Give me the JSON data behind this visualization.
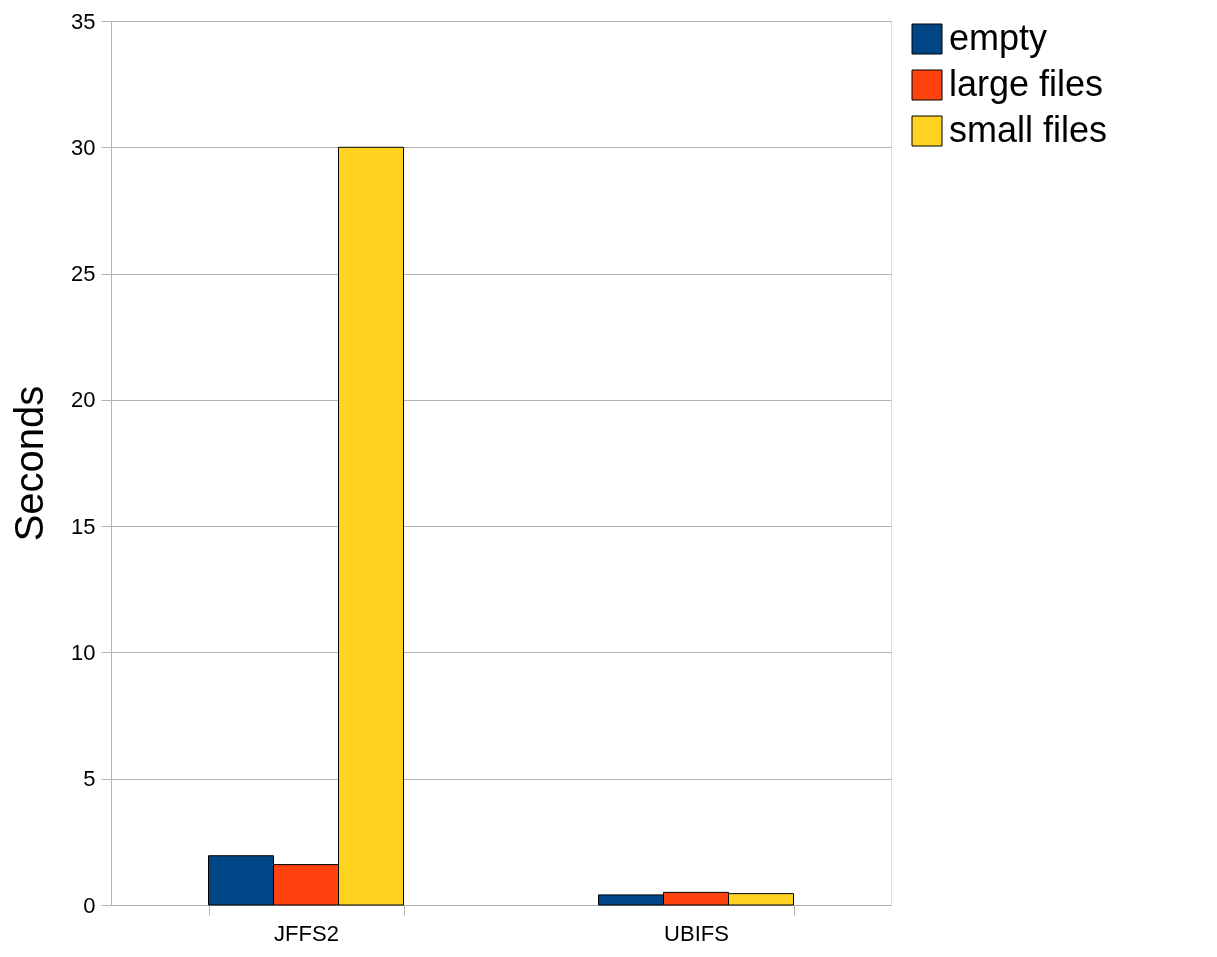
{
  "chart_data": {
    "type": "bar",
    "ylabel": "Seconds",
    "categories": [
      "JFFS2",
      "UBIFS"
    ],
    "series": [
      {
        "name": "empty",
        "color": "#004586",
        "values": [
          1.95,
          0.4
        ]
      },
      {
        "name": "large files",
        "color": "#ff420e",
        "values": [
          1.6,
          0.5
        ]
      },
      {
        "name": "small files",
        "color": "#ffd320",
        "values": [
          30,
          0.45
        ]
      }
    ],
    "ylim": [
      0,
      35
    ],
    "yticks": [
      0,
      5,
      10,
      15,
      20,
      25,
      30,
      35
    ],
    "grid": "y",
    "legend": "right"
  }
}
